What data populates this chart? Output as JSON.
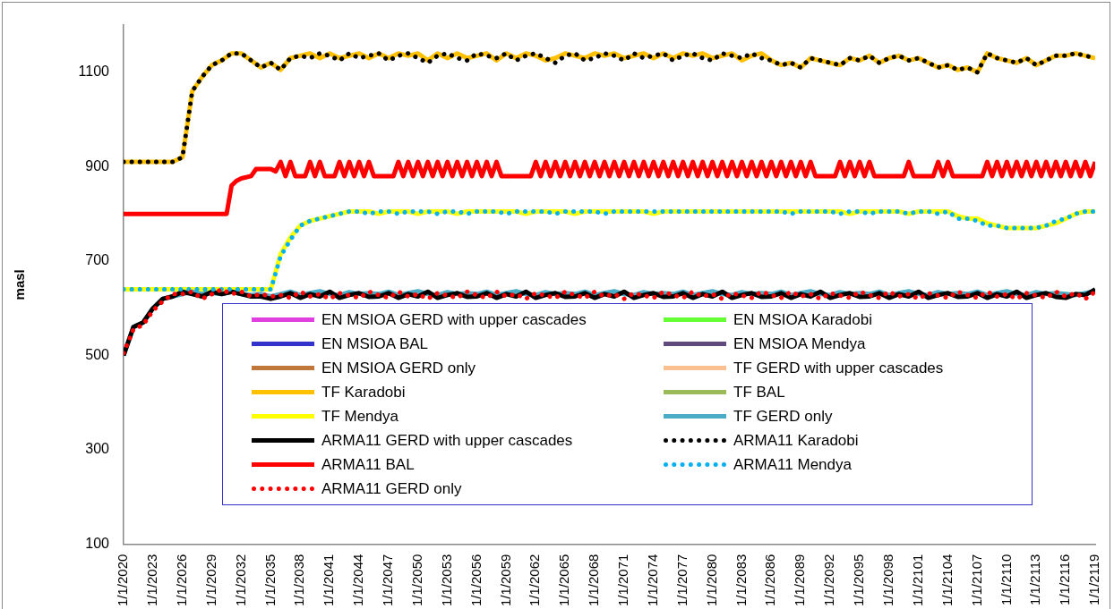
{
  "chart_data": {
    "type": "line",
    "ylabel": "masl",
    "ylim": [
      100,
      1200
    ],
    "yticks": [
      100,
      300,
      500,
      700,
      900,
      1100
    ],
    "xlim": [
      "2020",
      "2119"
    ],
    "xticks": [
      {
        "value": "2020",
        "label": "1/1/2020"
      },
      {
        "value": "2023",
        "label": "1/1/2023"
      },
      {
        "value": "2026",
        "label": "1/1/2026"
      },
      {
        "value": "2029",
        "label": "1/1/2029"
      },
      {
        "value": "2032",
        "label": "1/1/2032"
      },
      {
        "value": "2035",
        "label": "1/1/2035"
      },
      {
        "value": "2038",
        "label": "1/1/2038"
      },
      {
        "value": "2041",
        "label": "1/1/2041"
      },
      {
        "value": "2044",
        "label": "1/1/2044"
      },
      {
        "value": "2047",
        "label": "1/1/2047"
      },
      {
        "value": "2050",
        "label": "1/1/2050"
      },
      {
        "value": "2053",
        "label": "1/1/2053"
      },
      {
        "value": "2056",
        "label": "1/1/2056"
      },
      {
        "value": "2059",
        "label": "1/1/2059"
      },
      {
        "value": "2062",
        "label": "1/1/2062"
      },
      {
        "value": "2065",
        "label": "1/1/2065"
      },
      {
        "value": "2068",
        "label": "1/1/2068"
      },
      {
        "value": "2071",
        "label": "1/1/2071"
      },
      {
        "value": "2074",
        "label": "1/1/2074"
      },
      {
        "value": "2077",
        "label": "1/1/2077"
      },
      {
        "value": "2080",
        "label": "1/1/2080"
      },
      {
        "value": "2083",
        "label": "1/1/2083"
      },
      {
        "value": "2086",
        "label": "1/1/2086"
      },
      {
        "value": "2089",
        "label": "1/1/2089"
      },
      {
        "value": "2092",
        "label": "1/1/2092"
      },
      {
        "value": "2095",
        "label": "1/1/2095"
      },
      {
        "value": "2098",
        "label": "1/1/2098"
      },
      {
        "value": "2101",
        "label": "1/1/2101"
      },
      {
        "value": "2104",
        "label": "1/1/2104"
      },
      {
        "value": "2107",
        "label": "1/1/2107"
      },
      {
        "value": "2110",
        "label": "1/1/2110"
      },
      {
        "value": "2113",
        "label": "1/1/2113"
      },
      {
        "value": "2116",
        "label": "1/1/2116"
      },
      {
        "value": "2119",
        "label": "1/1/2119"
      }
    ],
    "x": [
      "2020",
      "2021",
      "2022",
      "2023",
      "2024",
      "2025",
      "2026",
      "2027",
      "2028",
      "2029",
      "2030",
      "2031",
      "2032",
      "2033",
      "2034",
      "2035",
      "2036",
      "2037",
      "2038",
      "2039",
      "2040",
      "2041",
      "2042",
      "2043",
      "2044",
      "2045",
      "2046",
      "2047",
      "2048",
      "2049",
      "2050",
      "2051",
      "2052",
      "2053",
      "2054",
      "2055",
      "2056",
      "2057",
      "2058",
      "2059",
      "2060",
      "2061",
      "2062",
      "2063",
      "2064",
      "2065",
      "2066",
      "2067",
      "2068",
      "2069",
      "2070",
      "2071",
      "2072",
      "2073",
      "2074",
      "2075",
      "2076",
      "2077",
      "2078",
      "2079",
      "2080",
      "2081",
      "2082",
      "2083",
      "2084",
      "2085",
      "2086",
      "2087",
      "2088",
      "2089",
      "2090",
      "2091",
      "2092",
      "2093",
      "2094",
      "2095",
      "2096",
      "2097",
      "2098",
      "2099",
      "2100",
      "2101",
      "2102",
      "2103",
      "2104",
      "2105",
      "2106",
      "2107",
      "2108",
      "2109",
      "2110",
      "2111",
      "2112",
      "2113",
      "2114",
      "2115",
      "2116",
      "2117",
      "2118",
      "2119"
    ],
    "legend": "bottom",
    "marker": "none",
    "line_style": "solid",
    "series": [
      {
        "name": "EN MSIOA GERD with upper cascades",
        "color": "#e040e0",
        "values": [
          null,
          null,
          null,
          null,
          null,
          null,
          null,
          null,
          null,
          null,
          null,
          null,
          null,
          null,
          null,
          null,
          null,
          null,
          null,
          null,
          null,
          null,
          null,
          null,
          null,
          null,
          null,
          null,
          null,
          null,
          null,
          null,
          null,
          null,
          null,
          null,
          null,
          null,
          null,
          null,
          null,
          null,
          null,
          null,
          null,
          null,
          null,
          null,
          null,
          null,
          null,
          null,
          null,
          null,
          null,
          null,
          null,
          null,
          null,
          null,
          null,
          null,
          null,
          null,
          null,
          null,
          null,
          null,
          null,
          null,
          null,
          null,
          null,
          null,
          null,
          null,
          null,
          null,
          null,
          null,
          null,
          null,
          null,
          null,
          null,
          null,
          null,
          null,
          null,
          null,
          null,
          null,
          null,
          null,
          null,
          null,
          null,
          null,
          null,
          null
        ]
      },
      {
        "name": "EN MSIOA Karadobi",
        "color": "#66ff33",
        "values": [
          null,
          null,
          null,
          null,
          null,
          null,
          null,
          null,
          null,
          null,
          null,
          null,
          null,
          null,
          null,
          null,
          null,
          null,
          null,
          null,
          null,
          null,
          null,
          null,
          null,
          null,
          null,
          null,
          null,
          null,
          null,
          null,
          null,
          null,
          null,
          null,
          null,
          null,
          null,
          null,
          null,
          null,
          null,
          null,
          null,
          null,
          null,
          null,
          null,
          null,
          null,
          null,
          null,
          null,
          null,
          null,
          null,
          null,
          null,
          null,
          null,
          null,
          null,
          null,
          null,
          null,
          null,
          null,
          null,
          null,
          null,
          null,
          null,
          null,
          null,
          null,
          null,
          null,
          null,
          null,
          null,
          null,
          null,
          null,
          null,
          null,
          null,
          null,
          null,
          null,
          null,
          null,
          null,
          null,
          null,
          null,
          null,
          null,
          null,
          null
        ]
      },
      {
        "name": "EN MSIOA BAL",
        "color": "#3333cc",
        "values": [
          null,
          null,
          null,
          null,
          null,
          null,
          null,
          null,
          null,
          null,
          null,
          null,
          null,
          null,
          null,
          null,
          null,
          null,
          null,
          null,
          null,
          null,
          null,
          null,
          null,
          null,
          null,
          null,
          null,
          null,
          null,
          null,
          null,
          null,
          null,
          null,
          null,
          null,
          null,
          null,
          null,
          null,
          null,
          null,
          null,
          null,
          null,
          null,
          null,
          null,
          null,
          null,
          null,
          null,
          null,
          null,
          null,
          null,
          null,
          null,
          null,
          null,
          null,
          null,
          null,
          null,
          null,
          null,
          null,
          null,
          null,
          null,
          null,
          null,
          null,
          null,
          null,
          null,
          null,
          null,
          null,
          null,
          null,
          null,
          null,
          null,
          null,
          null,
          null,
          null,
          null,
          null,
          null,
          null,
          null,
          null,
          null,
          null,
          null,
          null
        ]
      },
      {
        "name": "EN MSIOA Mendya",
        "color": "#604a7b",
        "values": [
          null,
          null,
          null,
          null,
          null,
          null,
          null,
          null,
          null,
          null,
          null,
          null,
          null,
          null,
          null,
          null,
          null,
          null,
          null,
          null,
          null,
          null,
          null,
          null,
          null,
          null,
          null,
          null,
          null,
          null,
          null,
          null,
          null,
          null,
          null,
          null,
          null,
          null,
          null,
          null,
          null,
          null,
          null,
          null,
          null,
          null,
          null,
          null,
          null,
          null,
          null,
          null,
          null,
          null,
          null,
          null,
          null,
          null,
          null,
          null,
          null,
          null,
          null,
          null,
          null,
          null,
          null,
          null,
          null,
          null,
          null,
          null,
          null,
          null,
          null,
          null,
          null,
          null,
          null,
          null,
          null,
          null,
          null,
          null,
          null,
          null,
          null,
          null,
          null,
          null,
          null,
          null,
          null,
          null,
          null,
          null,
          null,
          null,
          null,
          null
        ]
      },
      {
        "name": "EN MSIOA GERD only",
        "color": "#c0783a",
        "values": [
          null,
          null,
          null,
          null,
          null,
          null,
          null,
          null,
          null,
          null,
          null,
          null,
          null,
          null,
          null,
          null,
          null,
          null,
          null,
          null,
          null,
          null,
          null,
          null,
          null,
          null,
          null,
          null,
          null,
          null,
          null,
          null,
          null,
          null,
          null,
          null,
          null,
          null,
          null,
          null,
          null,
          null,
          null,
          null,
          null,
          null,
          null,
          null,
          null,
          null,
          null,
          null,
          null,
          null,
          null,
          null,
          null,
          null,
          null,
          null,
          null,
          null,
          null,
          null,
          null,
          null,
          null,
          null,
          null,
          null,
          null,
          null,
          null,
          null,
          null,
          null,
          null,
          null,
          null,
          null,
          null,
          null,
          null,
          null,
          null,
          null,
          null,
          null,
          null,
          null,
          null,
          null,
          null,
          null,
          null,
          null,
          null,
          null,
          null,
          null
        ]
      },
      {
        "name": "TF GERD with upper cascades",
        "color": "#fac090",
        "values": [
          null,
          null,
          null,
          null,
          null,
          null,
          null,
          null,
          null,
          null,
          null,
          null,
          null,
          null,
          null,
          null,
          null,
          null,
          null,
          null,
          null,
          null,
          null,
          null,
          null,
          null,
          null,
          null,
          null,
          null,
          null,
          null,
          null,
          null,
          null,
          null,
          null,
          null,
          null,
          null,
          null,
          null,
          null,
          null,
          null,
          null,
          null,
          null,
          null,
          null,
          null,
          null,
          null,
          null,
          null,
          null,
          null,
          null,
          null,
          null,
          null,
          null,
          null,
          null,
          null,
          null,
          null,
          null,
          null,
          null,
          null,
          null,
          null,
          null,
          null,
          null,
          null,
          null,
          null,
          null,
          null,
          null,
          null,
          null,
          null,
          null,
          null,
          null,
          null,
          null,
          null,
          null,
          null,
          null,
          null,
          null,
          null,
          null,
          null,
          null
        ]
      },
      {
        "name": "TF Karadobi",
        "color": "#ffc000",
        "values": [
          910,
          910,
          910,
          910,
          910,
          910,
          920,
          1060,
          1090,
          1115,
          1125,
          1140,
          1140,
          1125,
          1110,
          1120,
          1105,
          1130,
          1135,
          1140,
          1130,
          1140,
          1130,
          1135,
          1140,
          1130,
          1140,
          1130,
          1140,
          1135,
          1140,
          1125,
          1140,
          1130,
          1140,
          1130,
          1135,
          1140,
          1125,
          1140,
          1130,
          1140,
          1135,
          1125,
          1130,
          1140,
          1135,
          1130,
          1140,
          1135,
          1140,
          1130,
          1135,
          1140,
          1130,
          1140,
          1130,
          1140,
          1135,
          1140,
          1130,
          1135,
          1140,
          1125,
          1135,
          1140,
          1125,
          1115,
          1120,
          1110,
          1130,
          1125,
          1120,
          1115,
          1130,
          1125,
          1135,
          1120,
          1130,
          1135,
          1125,
          1130,
          1120,
          1110,
          1115,
          1105,
          1110,
          1100,
          1140,
          1130,
          1125,
          1120,
          1130,
          1115,
          1125,
          1135,
          1135,
          1140,
          1135,
          1130
        ]
      },
      {
        "name": "TF BAL",
        "color": "#9bbb59",
        "values": [
          null,
          null,
          null,
          null,
          null,
          null,
          null,
          null,
          null,
          null,
          null,
          null,
          null,
          null,
          null,
          null,
          null,
          null,
          null,
          null,
          null,
          null,
          null,
          null,
          null,
          null,
          null,
          null,
          null,
          null,
          null,
          null,
          null,
          null,
          null,
          null,
          null,
          null,
          null,
          null,
          null,
          null,
          null,
          null,
          null,
          null,
          null,
          null,
          null,
          null,
          null,
          null,
          null,
          null,
          null,
          null,
          null,
          null,
          null,
          null,
          null,
          null,
          null,
          null,
          null,
          null,
          null,
          null,
          null,
          null,
          null,
          null,
          null,
          null,
          null,
          null,
          null,
          null,
          null,
          null,
          null,
          null,
          null,
          null,
          null,
          null,
          null,
          null,
          null,
          null,
          null,
          null,
          null,
          null,
          null,
          null,
          null,
          null,
          null,
          null
        ]
      },
      {
        "name": "TF Mendya",
        "color": "#ffff00",
        "values": [
          640,
          640,
          640,
          640,
          640,
          640,
          640,
          640,
          640,
          640,
          640,
          640,
          640,
          640,
          640,
          640,
          715,
          750,
          775,
          785,
          790,
          795,
          800,
          805,
          805,
          805,
          800,
          805,
          805,
          805,
          800,
          805,
          805,
          805,
          800,
          805,
          805,
          805,
          805,
          805,
          805,
          800,
          805,
          805,
          805,
          805,
          800,
          805,
          805,
          805,
          805,
          805,
          805,
          805,
          800,
          805,
          805,
          805,
          805,
          805,
          805,
          805,
          805,
          805,
          805,
          805,
          805,
          805,
          805,
          805,
          805,
          805,
          805,
          805,
          800,
          805,
          805,
          805,
          805,
          805,
          800,
          805,
          805,
          805,
          805,
          795,
          790,
          790,
          780,
          775,
          770,
          770,
          770,
          770,
          775,
          780,
          790,
          800,
          805,
          805
        ]
      },
      {
        "name": "TF GERD only",
        "color": "#4bacc6",
        "values": [
          500,
          560,
          570,
          600,
          620,
          625,
          630,
          635,
          630,
          632,
          630,
          635,
          630,
          628,
          630,
          625,
          630,
          635,
          628,
          632,
          636,
          630,
          628,
          634,
          630,
          632,
          630,
          635,
          628,
          632,
          636,
          630,
          628,
          634,
          630,
          632,
          630,
          635,
          628,
          632,
          636,
          630,
          628,
          634,
          630,
          632,
          630,
          635,
          628,
          632,
          636,
          630,
          628,
          634,
          630,
          632,
          630,
          635,
          628,
          632,
          636,
          630,
          628,
          634,
          630,
          632,
          630,
          635,
          628,
          632,
          636,
          630,
          628,
          634,
          630,
          632,
          630,
          635,
          628,
          632,
          636,
          630,
          628,
          634,
          630,
          632,
          630,
          635,
          628,
          632,
          636,
          630,
          628,
          634,
          630,
          632,
          630,
          628,
          632,
          636
        ]
      },
      {
        "name": "ARMA11 GERD with upper cascades",
        "color": "#000000",
        "values": [
          500,
          560,
          570,
          600,
          620,
          625,
          635,
          630,
          625,
          635,
          630,
          635,
          630,
          625,
          625,
          620,
          625,
          632,
          622,
          630,
          625,
          635,
          622,
          628,
          632,
          624,
          625,
          632,
          622,
          630,
          625,
          635,
          622,
          628,
          632,
          624,
          625,
          632,
          622,
          630,
          625,
          635,
          622,
          628,
          632,
          624,
          625,
          632,
          622,
          630,
          625,
          635,
          622,
          628,
          632,
          624,
          625,
          632,
          622,
          630,
          625,
          635,
          622,
          628,
          632,
          624,
          625,
          632,
          622,
          630,
          625,
          635,
          622,
          628,
          632,
          624,
          625,
          632,
          622,
          630,
          625,
          635,
          622,
          628,
          632,
          624,
          625,
          632,
          622,
          630,
          625,
          635,
          622,
          628,
          632,
          624,
          622,
          630,
          628,
          640
        ]
      },
      {
        "name": "ARMA11 Karadobi",
        "color": "#000000",
        "line_style": "dotted",
        "values": [
          910,
          910,
          910,
          910,
          910,
          910,
          920,
          1060,
          1090,
          1115,
          1125,
          1140,
          1140,
          1125,
          1110,
          1120,
          1105,
          1130,
          1135,
          1130,
          1140,
          1135,
          1125,
          1140,
          1130,
          1135,
          1140,
          1125,
          1135,
          1140,
          1130,
          1120,
          1135,
          1140,
          1130,
          1125,
          1140,
          1135,
          1130,
          1140,
          1125,
          1135,
          1140,
          1130,
          1120,
          1135,
          1140,
          1125,
          1130,
          1140,
          1135,
          1125,
          1140,
          1130,
          1135,
          1140,
          1125,
          1135,
          1140,
          1130,
          1125,
          1140,
          1135,
          1130,
          1140,
          1130,
          1125,
          1115,
          1120,
          1110,
          1130,
          1125,
          1120,
          1115,
          1130,
          1125,
          1135,
          1120,
          1130,
          1135,
          1125,
          1130,
          1120,
          1110,
          1115,
          1105,
          1110,
          1100,
          1140,
          1130,
          1125,
          1120,
          1130,
          1115,
          1125,
          1135,
          1135,
          1140,
          1135,
          1130
        ]
      },
      {
        "name": "ARMA11 BAL",
        "color": "#ff0000",
        "x": [
          "2020-01",
          "2030-07",
          "2031-01",
          "2031-07",
          "2032-01",
          "2033-01",
          "2033-07",
          "2035-01",
          "2035-07",
          "2036-01",
          "2036-07",
          "2037-01",
          "2037-07",
          "2038-01",
          "2038-07",
          "2039-01",
          "2039-07",
          "2040-01",
          "2040-07",
          "2041-01",
          "2041-07",
          "2042-01",
          "2042-07",
          "2043-01",
          "2043-07",
          "2044-01",
          "2044-07",
          "2045-01",
          "2045-07",
          "2046-01",
          "2046-07",
          "2047-01",
          "2047-07",
          "2048-01",
          "2048-07",
          "2049-01",
          "2049-07",
          "2050-01",
          "2050-07",
          "2051-01",
          "2051-07",
          "2052-01",
          "2052-07",
          "2053-01",
          "2053-07",
          "2054-01",
          "2054-07",
          "2055-01",
          "2055-07",
          "2056-01",
          "2056-07",
          "2057-01",
          "2057-07",
          "2058-01",
          "2058-07",
          "2059-01",
          "2059-07",
          "2060-01",
          "2060-07",
          "2061-01",
          "2061-07",
          "2062-01",
          "2062-07",
          "2063-01",
          "2063-07",
          "2064-01",
          "2064-07",
          "2065-01",
          "2065-07",
          "2066-01",
          "2066-07",
          "2067-01",
          "2067-07",
          "2068-01",
          "2068-07",
          "2069-01",
          "2069-07",
          "2070-01",
          "2070-07",
          "2071-01",
          "2071-07",
          "2072-01",
          "2072-07",
          "2073-01",
          "2073-07",
          "2074-01",
          "2074-07",
          "2075-01",
          "2075-07",
          "2076-01",
          "2076-07",
          "2077-01",
          "2077-07",
          "2078-01",
          "2078-07",
          "2079-01",
          "2079-07",
          "2080-01",
          "2080-07",
          "2081-01",
          "2081-07",
          "2082-01",
          "2082-07",
          "2083-01",
          "2083-07",
          "2084-01",
          "2084-07",
          "2085-01",
          "2085-07",
          "2086-01",
          "2086-07",
          "2087-01",
          "2087-07",
          "2088-01",
          "2088-07",
          "2089-01",
          "2089-07",
          "2090-01",
          "2090-07",
          "2091-01",
          "2091-07",
          "2092-01",
          "2092-07",
          "2093-01",
          "2093-07",
          "2094-01",
          "2094-07",
          "2095-01",
          "2095-07",
          "2096-01",
          "2096-07",
          "2097-01",
          "2097-07",
          "2098-01",
          "2098-07",
          "2099-01",
          "2099-07",
          "2100-01",
          "2100-07",
          "2101-01",
          "2101-07",
          "2102-01",
          "2102-07",
          "2103-01",
          "2103-07",
          "2104-01",
          "2104-07",
          "2105-01",
          "2105-07",
          "2106-01",
          "2106-07",
          "2107-01",
          "2107-07",
          "2108-01",
          "2108-07",
          "2109-01",
          "2109-07",
          "2110-01",
          "2110-07",
          "2111-01",
          "2111-07",
          "2112-01",
          "2112-07",
          "2113-01",
          "2113-07",
          "2114-01",
          "2114-07",
          "2115-01",
          "2115-07",
          "2116-01",
          "2116-07",
          "2117-01",
          "2117-07",
          "2118-01",
          "2118-07",
          "2119-01"
        ],
        "values": [
          800,
          800,
          860,
          870,
          875,
          880,
          895,
          895,
          890,
          910,
          880,
          910,
          880,
          880,
          880,
          910,
          880,
          910,
          880,
          880,
          880,
          910,
          880,
          910,
          880,
          910,
          880,
          910,
          880,
          880,
          880,
          880,
          880,
          910,
          880,
          910,
          880,
          910,
          880,
          910,
          880,
          910,
          880,
          910,
          880,
          910,
          880,
          910,
          880,
          910,
          880,
          910,
          880,
          910,
          880,
          880,
          880,
          880,
          880,
          880,
          880,
          910,
          880,
          910,
          880,
          910,
          880,
          910,
          880,
          910,
          880,
          910,
          880,
          910,
          880,
          910,
          880,
          910,
          880,
          910,
          880,
          910,
          880,
          910,
          880,
          910,
          880,
          910,
          880,
          910,
          880,
          910,
          880,
          910,
          880,
          910,
          880,
          910,
          880,
          910,
          880,
          910,
          880,
          910,
          880,
          910,
          880,
          910,
          880,
          910,
          880,
          910,
          880,
          910,
          880,
          910,
          880,
          910,
          880,
          880,
          880,
          880,
          880,
          910,
          880,
          910,
          880,
          910,
          880,
          910,
          880,
          880,
          880,
          880,
          880,
          880,
          880,
          910,
          880,
          880,
          880,
          880,
          880,
          910,
          880,
          910,
          880,
          880,
          880,
          880,
          880,
          880,
          880,
          910,
          880,
          910,
          880,
          910,
          880,
          910,
          880,
          910,
          880,
          910,
          880,
          910,
          880,
          910,
          880,
          910,
          880,
          910,
          880,
          910,
          880,
          910
        ]
      },
      {
        "name": "ARMA11 Mendya",
        "color": "#00b0f0",
        "line_style": "dotted",
        "values": [
          640,
          640,
          640,
          640,
          640,
          640,
          640,
          640,
          640,
          640,
          640,
          640,
          640,
          640,
          640,
          640,
          710,
          745,
          775,
          785,
          790,
          795,
          800,
          805,
          805,
          800,
          805,
          805,
          800,
          805,
          805,
          805,
          800,
          805,
          805,
          800,
          805,
          805,
          805,
          800,
          805,
          805,
          805,
          805,
          800,
          805,
          805,
          805,
          805,
          800,
          805,
          805,
          805,
          805,
          805,
          805,
          805,
          805,
          805,
          805,
          805,
          805,
          805,
          805,
          805,
          805,
          805,
          805,
          800,
          805,
          805,
          805,
          805,
          800,
          805,
          805,
          800,
          805,
          805,
          805,
          800,
          805,
          805,
          800,
          805,
          790,
          790,
          785,
          775,
          775,
          770,
          770,
          770,
          770,
          775,
          785,
          790,
          800,
          805,
          805
        ]
      },
      {
        "name": "ARMA11 GERD only",
        "color": "#ff0000",
        "line_style": "dotted",
        "values": [
          505,
          555,
          565,
          595,
          615,
          630,
          630,
          635,
          620,
          630,
          640,
          630,
          635,
          625,
          630,
          625,
          628,
          622,
          635,
          625,
          630,
          620,
          632,
          627,
          622,
          635,
          628,
          622,
          635,
          625,
          630,
          620,
          632,
          627,
          622,
          635,
          628,
          622,
          635,
          625,
          630,
          620,
          632,
          627,
          622,
          635,
          628,
          622,
          635,
          625,
          630,
          620,
          632,
          627,
          622,
          635,
          628,
          622,
          635,
          625,
          630,
          620,
          632,
          627,
          622,
          635,
          628,
          622,
          635,
          625,
          630,
          620,
          632,
          627,
          622,
          635,
          628,
          622,
          635,
          625,
          630,
          620,
          632,
          627,
          622,
          635,
          628,
          622,
          635,
          625,
          630,
          620,
          632,
          627,
          622,
          635,
          625,
          632,
          620,
          635
        ]
      }
    ]
  }
}
